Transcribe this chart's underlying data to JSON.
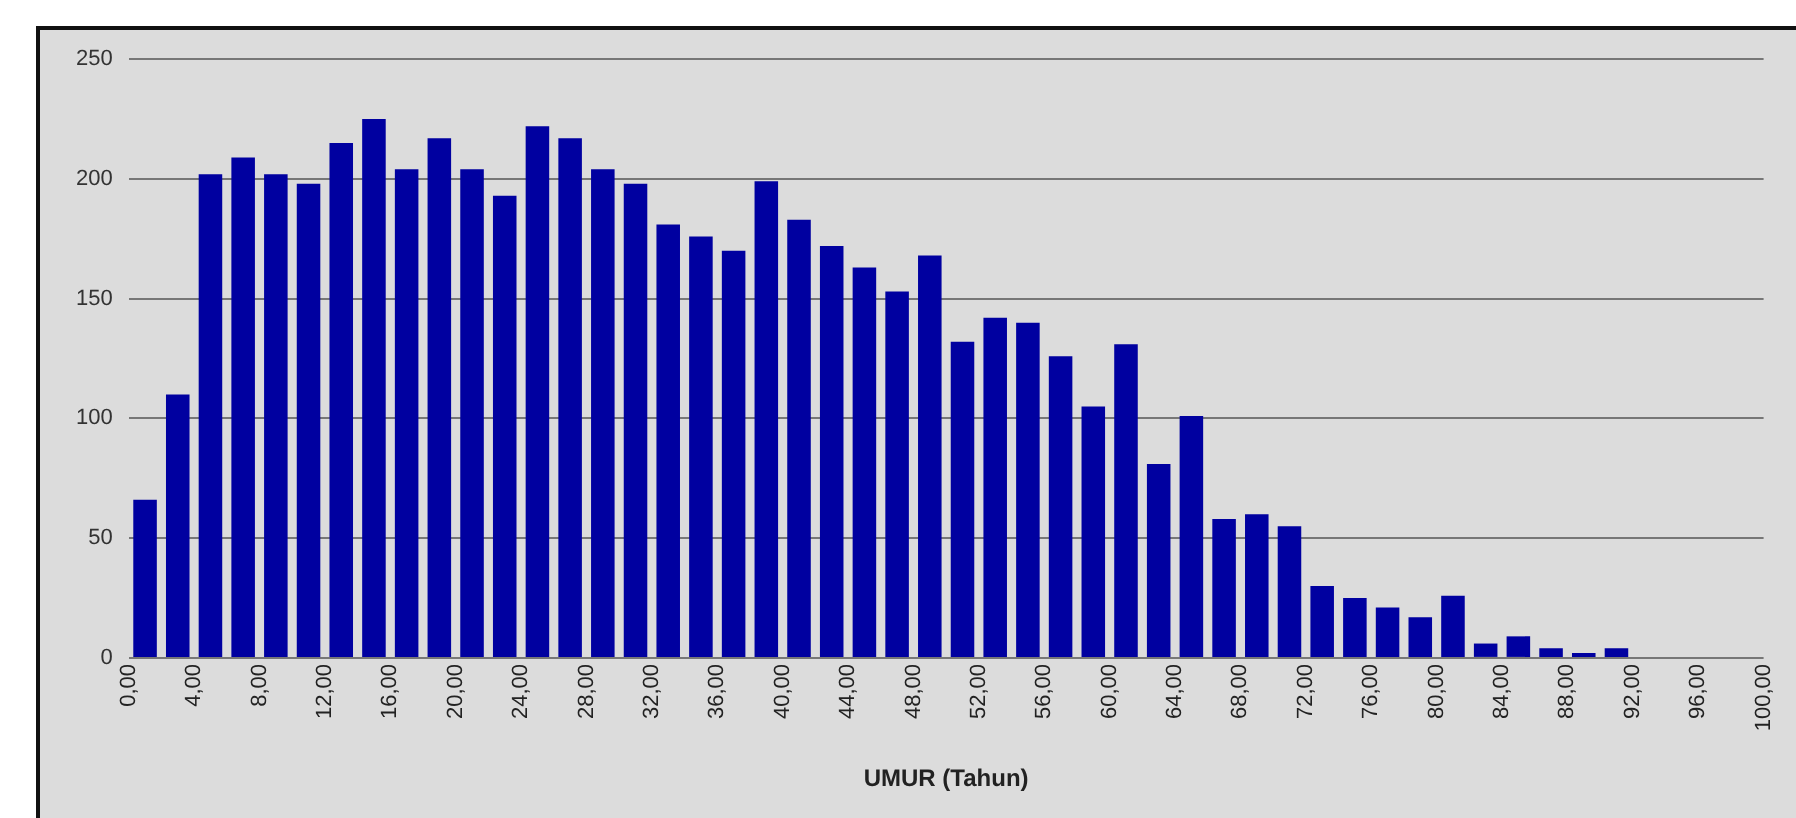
{
  "chart_data": {
    "type": "histogram",
    "xlabel": "UMUR (Tahun)",
    "color": "#0000a0",
    "bins": [
      0,
      2,
      4,
      6,
      8,
      10,
      12,
      14,
      16,
      18,
      20,
      22,
      24,
      26,
      28,
      30,
      32,
      34,
      36,
      38,
      40,
      42,
      44,
      46,
      48,
      50,
      52,
      54,
      56,
      58,
      60,
      62,
      64,
      66,
      68,
      70,
      72,
      74,
      76,
      78,
      80,
      82,
      84,
      86,
      88,
      90,
      92,
      94,
      96,
      98,
      100
    ],
    "values": [
      66,
      110,
      202,
      209,
      202,
      198,
      215,
      225,
      204,
      217,
      204,
      193,
      222,
      217,
      204,
      198,
      181,
      176,
      170,
      199,
      183,
      172,
      163,
      153,
      168,
      132,
      142,
      140,
      126,
      105,
      131,
      81,
      101,
      58,
      60,
      55,
      30,
      25,
      21,
      17,
      26,
      6,
      9,
      4,
      2,
      4,
      0,
      0,
      0,
      0
    ],
    "xlim": [
      0,
      100
    ],
    "xticks": [
      {
        "value": 0,
        "label": "0,00"
      },
      {
        "value": 4,
        "label": "4,00"
      },
      {
        "value": 8,
        "label": "8,00"
      },
      {
        "value": 12,
        "label": "12,00"
      },
      {
        "value": 16,
        "label": "16,00"
      },
      {
        "value": 20,
        "label": "20,00"
      },
      {
        "value": 24,
        "label": "24,00"
      },
      {
        "value": 28,
        "label": "28,00"
      },
      {
        "value": 32,
        "label": "32,00"
      },
      {
        "value": 36,
        "label": "36,00"
      },
      {
        "value": 40,
        "label": "40,00"
      },
      {
        "value": 44,
        "label": "44,00"
      },
      {
        "value": 48,
        "label": "48,00"
      },
      {
        "value": 52,
        "label": "52,00"
      },
      {
        "value": 56,
        "label": "56,00"
      },
      {
        "value": 60,
        "label": "60,00"
      },
      {
        "value": 64,
        "label": "64,00"
      },
      {
        "value": 68,
        "label": "68,00"
      },
      {
        "value": 72,
        "label": "72,00"
      },
      {
        "value": 76,
        "label": "76,00"
      },
      {
        "value": 80,
        "label": "80,00"
      },
      {
        "value": 84,
        "label": "84,00"
      },
      {
        "value": 88,
        "label": "88,00"
      },
      {
        "value": 92,
        "label": "92,00"
      },
      {
        "value": 96,
        "label": "96,00"
      },
      {
        "value": 100,
        "label": "100,00"
      }
    ],
    "ylim": [
      0,
      250
    ],
    "yticks": [
      0,
      50,
      100,
      150,
      200,
      250
    ],
    "grid": "y",
    "legend": false
  }
}
